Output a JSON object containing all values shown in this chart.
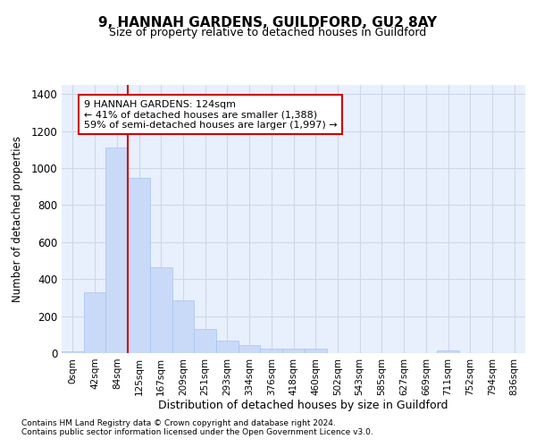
{
  "title1": "9, HANNAH GARDENS, GUILDFORD, GU2 8AY",
  "title2": "Size of property relative to detached houses in Guildford",
  "xlabel": "Distribution of detached houses by size in Guildford",
  "ylabel": "Number of detached properties",
  "categories": [
    "0sqm",
    "42sqm",
    "84sqm",
    "125sqm",
    "167sqm",
    "209sqm",
    "251sqm",
    "293sqm",
    "334sqm",
    "376sqm",
    "418sqm",
    "460sqm",
    "502sqm",
    "543sqm",
    "585sqm",
    "627sqm",
    "669sqm",
    "711sqm",
    "752sqm",
    "794sqm",
    "836sqm"
  ],
  "values": [
    10,
    330,
    1110,
    945,
    465,
    285,
    130,
    70,
    42,
    22,
    25,
    22,
    0,
    0,
    0,
    0,
    0,
    14,
    0,
    0,
    0
  ],
  "bar_color": "#c9daf8",
  "bar_edgecolor": "#a4c2f4",
  "grid_color": "#d0d8e8",
  "bg_color": "#e8f0fe",
  "vline_color": "#cc0000",
  "annotation_text": "9 HANNAH GARDENS: 124sqm\n← 41% of detached houses are smaller (1,388)\n59% of semi-detached houses are larger (1,997) →",
  "annotation_box_edgecolor": "#cc0000",
  "footer1": "Contains HM Land Registry data © Crown copyright and database right 2024.",
  "footer2": "Contains public sector information licensed under the Open Government Licence v3.0.",
  "ylim": [
    0,
    1450
  ],
  "yticks": [
    0,
    200,
    400,
    600,
    800,
    1000,
    1200,
    1400
  ]
}
